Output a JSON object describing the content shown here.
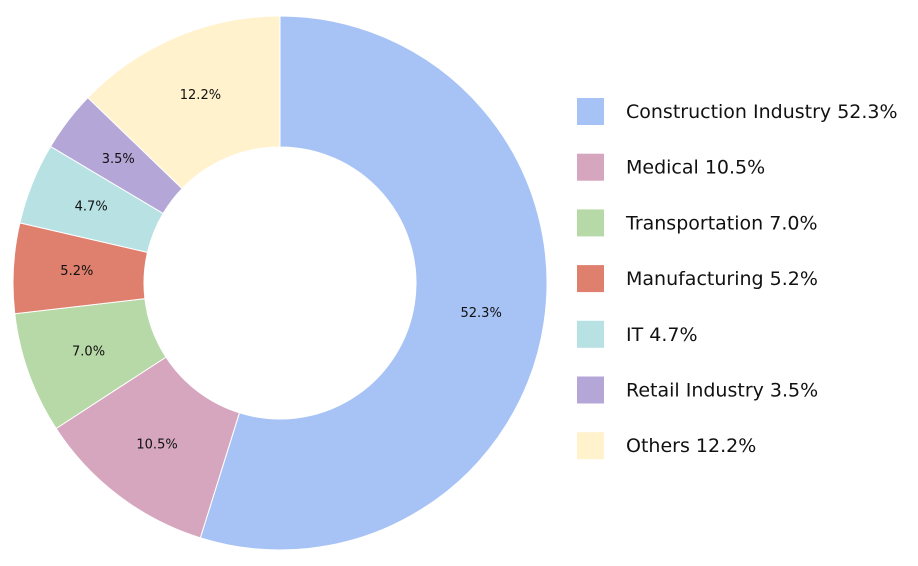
{
  "chart_data": {
    "type": "pie",
    "variant": "donut",
    "title": "",
    "legend_position": "right",
    "start_angle_deg": 0,
    "direction": "clockwise",
    "slices": [
      {
        "label": "Construction Industry 52.3%",
        "slice_label": "52.3%",
        "value": 52.3,
        "color": "#a7c3f5"
      },
      {
        "label": "Medical 10.5%",
        "slice_label": "10.5%",
        "value": 10.5,
        "color": "#d6a6bf"
      },
      {
        "label": "Transportation 7.0%",
        "slice_label": "7.0%",
        "value": 7.0,
        "color": "#b7d8a7"
      },
      {
        "label": "Manufacturing 5.2%",
        "slice_label": "5.2%",
        "value": 5.2,
        "color": "#df7f6d"
      },
      {
        "label": "IT 4.7%",
        "slice_label": "4.7%",
        "value": 4.7,
        "color": "#b7e1e3"
      },
      {
        "label": "Retail Industry  3.5%",
        "slice_label": "3.5%",
        "value": 3.5,
        "color": "#b4a7d7"
      },
      {
        "label": "Others 12.2%",
        "slice_label": "12.2%",
        "value": 12.2,
        "color": "#fff2cc"
      }
    ]
  }
}
